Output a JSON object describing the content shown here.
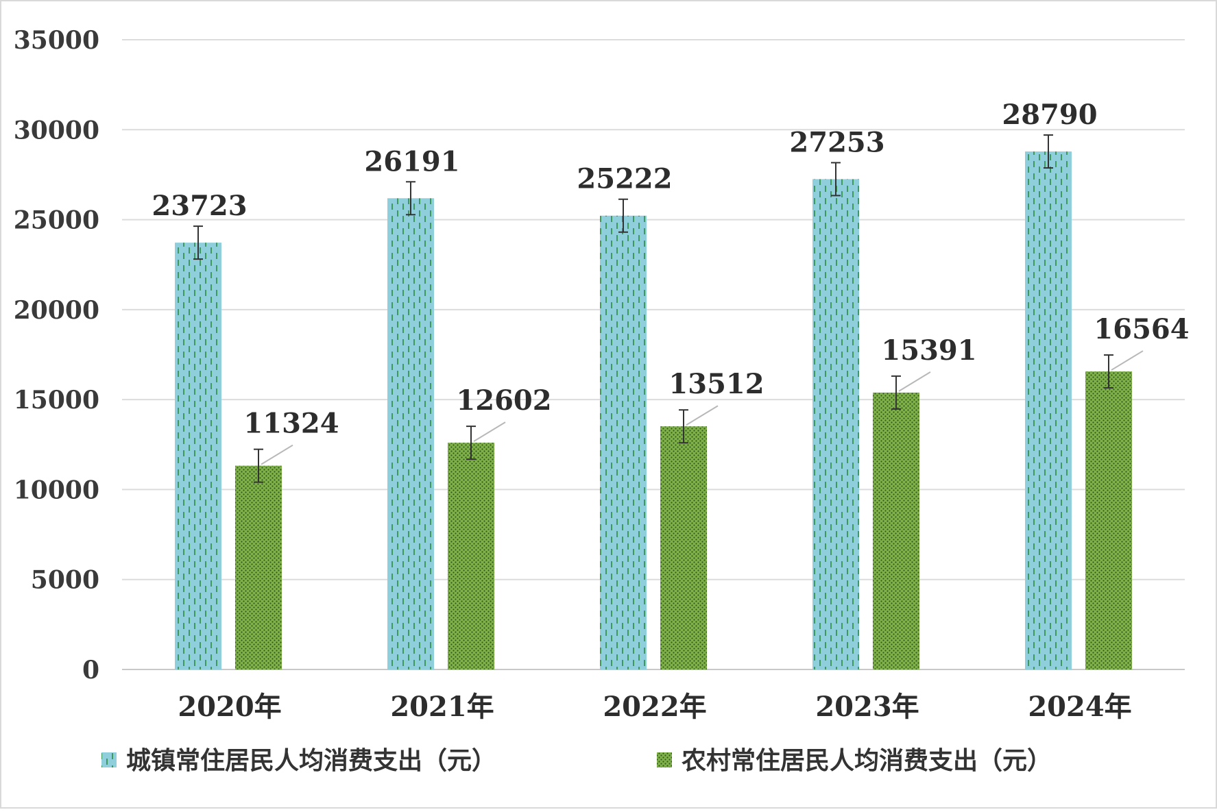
{
  "chart_data": {
    "type": "bar",
    "categories": [
      "2020年",
      "2021年",
      "2022年",
      "2023年",
      "2024年"
    ],
    "series": [
      {
        "name": "城镇常住居民人均消费支出（元）",
        "values": [
          23723,
          26191,
          25222,
          27253,
          28790
        ],
        "color": "#8fcfdc",
        "pattern_color": "#3d9a5a"
      },
      {
        "name": "农村常住居民人均消费支出（元）",
        "values": [
          11324,
          12602,
          13512,
          15391,
          16564
        ],
        "color": "#7fb04a",
        "pattern_color": "#2f5a1e"
      }
    ],
    "yticks": [
      "0",
      "5000",
      "10000",
      "15000",
      "20000",
      "25000",
      "30000",
      "35000"
    ],
    "ylim": [
      0,
      35000
    ],
    "grid": true,
    "error_bars": true,
    "legend_position": "bottom"
  }
}
